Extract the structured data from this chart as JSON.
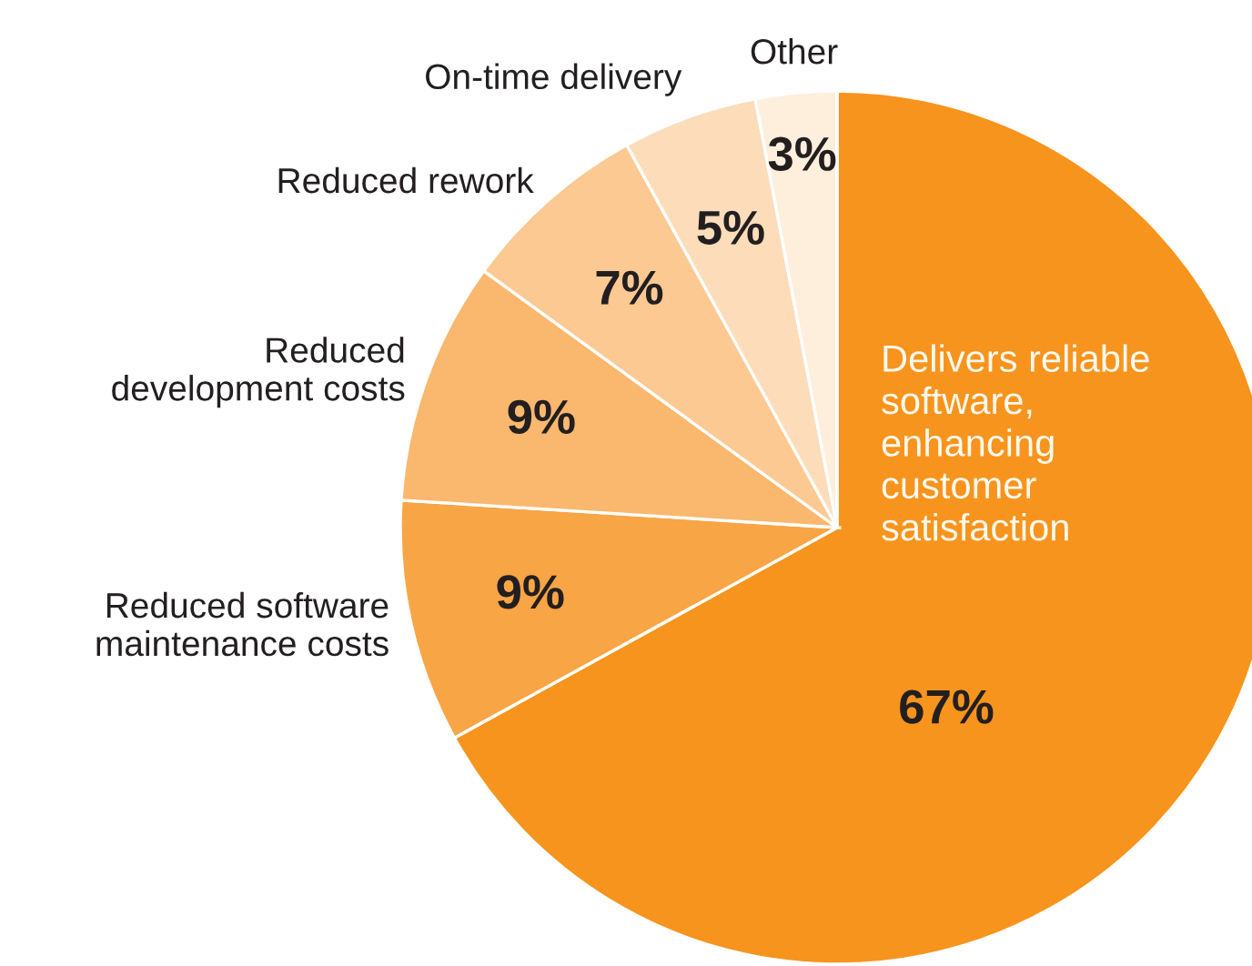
{
  "chart_data": {
    "type": "pie",
    "categories": [
      "Delivers reliable\nsoftware,\nenhancing\ncustomer\nsatisfaction",
      "Reduced software\nmaintenance costs",
      "Reduced\ndevelopment costs",
      "Reduced rework",
      "On-time delivery",
      "Other"
    ],
    "values": [
      67,
      9,
      9,
      7,
      5,
      3
    ],
    "value_labels": [
      "67%",
      "9%",
      "9%",
      "7%",
      "5%",
      "3%"
    ],
    "colors": [
      "#f7941d",
      "#f8a546",
      "#fab76e",
      "#fcc992",
      "#fddcb9",
      "#feeedc"
    ]
  }
}
